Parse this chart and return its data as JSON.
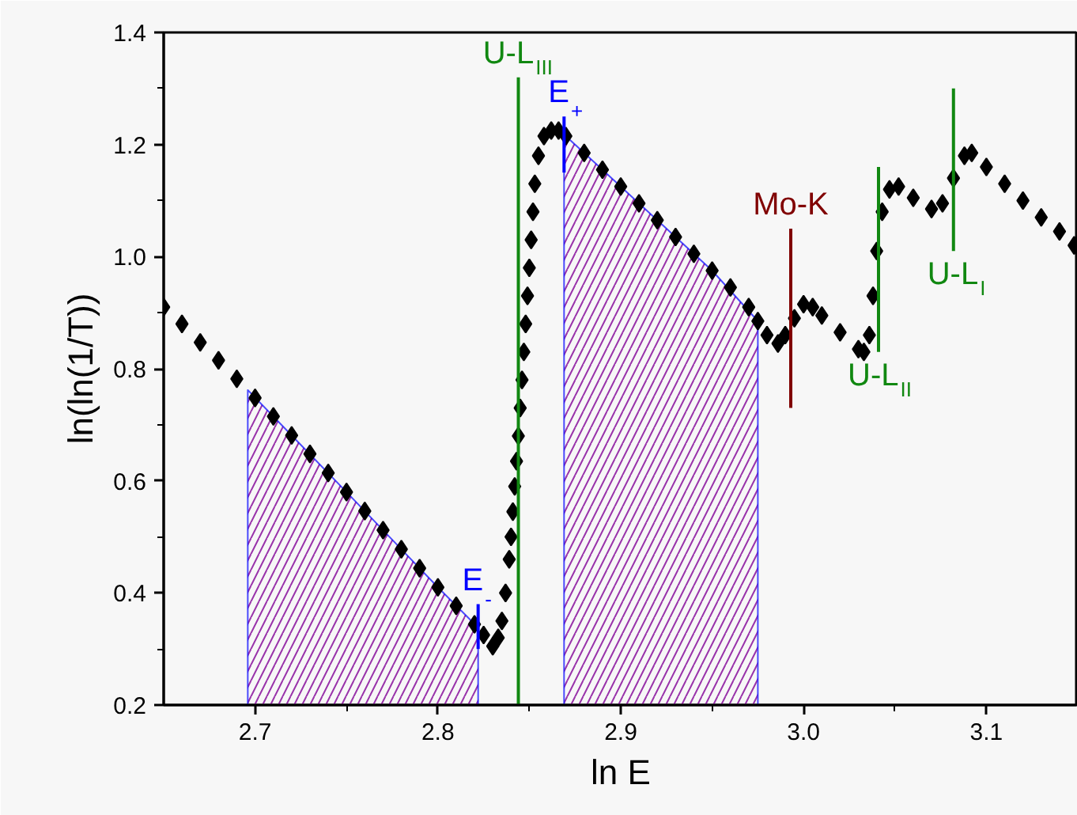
{
  "chart_data": {
    "type": "scatter",
    "xlabel": "ln E",
    "ylabel": "ln(ln(1/T))",
    "xlim": [
      2.65,
      3.15
    ],
    "ylim": [
      0.2,
      1.4
    ],
    "xticks": [
      2.7,
      2.8,
      2.9,
      {
        "value": 3,
        "label": "3.0"
      },
      3.1
    ],
    "yticks": [
      0.2,
      0.4,
      0.6,
      0.8,
      {
        "value": 1,
        "label": "1.0"
      },
      1.2,
      1.4
    ],
    "grid": false,
    "series": [
      {
        "type": "area",
        "color": "#9933aa",
        "x": [
          2.696,
          2.72,
          2.75,
          2.78,
          2.8,
          2.822
        ],
        "values": [
          0.762,
          0.681,
          0.58,
          0.478,
          0.41,
          0.338
        ]
      },
      {
        "type": "area",
        "color": "#9933aa",
        "x": [
          2.869,
          2.89,
          2.92,
          2.95,
          2.975
        ],
        "values": [
          1.218,
          1.155,
          1.065,
          0.975,
          0.885
        ]
      },
      {
        "marker": "diamond",
        "color": "#000000",
        "x": [
          2.65,
          2.66,
          2.67,
          2.68,
          2.69,
          2.7,
          2.71,
          2.72,
          2.73,
          2.74,
          2.75,
          2.76,
          2.77,
          2.78,
          2.79,
          2.8,
          2.81,
          2.82,
          2.825,
          2.83,
          2.833,
          2.835,
          2.837,
          2.839,
          2.84,
          2.841,
          2.842,
          2.843,
          2.844,
          2.845,
          2.846,
          2.847,
          2.848,
          2.849,
          2.85,
          2.851,
          2.852,
          2.853,
          2.855,
          2.858,
          2.862,
          2.866,
          2.87,
          2.88,
          2.89,
          2.9,
          2.91,
          2.92,
          2.93,
          2.94,
          2.95,
          2.96,
          2.97,
          2.975,
          2.98,
          2.986,
          2.99,
          2.995,
          3.0,
          3.005,
          3.01,
          3.02,
          3.03,
          3.033,
          3.036,
          3.038,
          3.04,
          3.043,
          3.047,
          3.052,
          3.06,
          3.07,
          3.076,
          3.082,
          3.088,
          3.092,
          3.1,
          3.11,
          3.12,
          3.13,
          3.14,
          3.148
        ],
        "values": [
          0.91,
          0.88,
          0.847,
          0.815,
          0.782,
          0.748,
          0.715,
          0.681,
          0.648,
          0.614,
          0.58,
          0.546,
          0.512,
          0.478,
          0.444,
          0.41,
          0.377,
          0.344,
          0.325,
          0.305,
          0.32,
          0.35,
          0.4,
          0.46,
          0.5,
          0.545,
          0.59,
          0.635,
          0.68,
          0.73,
          0.78,
          0.83,
          0.88,
          0.93,
          0.98,
          1.03,
          1.08,
          1.13,
          1.18,
          1.215,
          1.225,
          1.225,
          1.215,
          1.185,
          1.155,
          1.125,
          1.095,
          1.065,
          1.035,
          1.005,
          0.975,
          0.945,
          0.91,
          0.885,
          0.86,
          0.845,
          0.86,
          0.89,
          0.915,
          0.91,
          0.895,
          0.865,
          0.835,
          0.83,
          0.86,
          0.93,
          1.01,
          1.08,
          1.12,
          1.125,
          1.105,
          1.085,
          1.095,
          1.14,
          1.18,
          1.185,
          1.16,
          1.13,
          1.1,
          1.07,
          1.045,
          1.02
        ]
      },
      {
        "type": "line",
        "color": "#118811",
        "x": [
          2.844,
          2.844
        ],
        "values": [
          0.2,
          1.32
        ]
      },
      {
        "type": "line",
        "color": "#0000ff",
        "x": [
          2.822,
          2.822
        ],
        "values": [
          0.3,
          0.38
        ]
      },
      {
        "type": "line",
        "color": "#0000ff",
        "x": [
          2.869,
          2.869
        ],
        "values": [
          1.15,
          1.25
        ]
      },
      {
        "type": "line",
        "color": "#800000",
        "x": [
          2.993,
          2.993
        ],
        "values": [
          0.73,
          1.05
        ]
      },
      {
        "type": "line",
        "color": "#118811",
        "x": [
          3.041,
          3.041
        ],
        "values": [
          0.83,
          1.16
        ]
      },
      {
        "type": "line",
        "color": "#118811",
        "x": [
          3.082,
          3.082
        ],
        "values": [
          1.01,
          1.3
        ]
      }
    ],
    "annotations": [
      {
        "text": "U-L$_{III}$",
        "x": 2.844,
        "y": 1.32
      },
      {
        "text": "E$_{+}$",
        "x": 2.869,
        "y": 1.25
      },
      {
        "text": "Mo-K",
        "x": 2.993,
        "y": 1.05
      },
      {
        "text": "U-L$_{II}$",
        "x": 3.041,
        "y": 0.83
      },
      {
        "text": "U-L$_{I}$",
        "x": 3.082,
        "y": 1.01
      },
      {
        "text": "E$_{-}$",
        "x": 2.822,
        "y": 0.38
      }
    ]
  }
}
